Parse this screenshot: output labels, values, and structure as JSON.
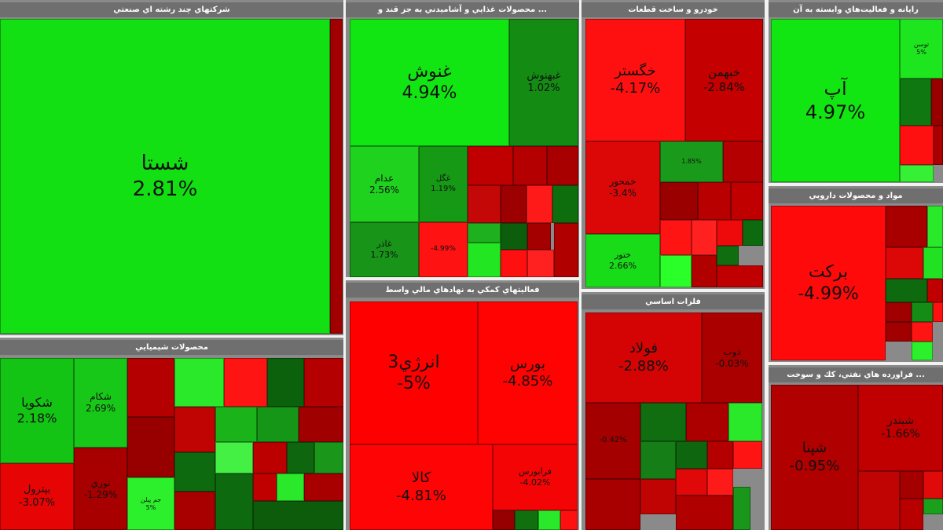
{
  "sectors": [
    {
      "title": "شرکتهاي چند رشته اي صنعتي",
      "tiles": [
        {
          "sym": "شستا",
          "pct": "2.81%",
          "color": "#12e012"
        },
        {
          "sym": "",
          "pct": "",
          "color": "#a00000"
        }
      ]
    },
    {
      "title": "... محصولات غذايي و آشاميدني به جز قند و",
      "tiles": [
        {
          "sym": "غنوش",
          "pct": "4.94%",
          "color": "#12e612"
        },
        {
          "sym": "غبهنوش",
          "pct": "1.02%",
          "color": "#148c14"
        },
        {
          "sym": "عدام",
          "pct": "2.56%",
          "color": "#1ed21e"
        },
        {
          "sym": "غگل",
          "pct": "1.19%",
          "color": "#169a16"
        },
        {
          "sym": "غاذر",
          "pct": "1.73%",
          "color": "#189418"
        },
        {
          "sym": "",
          "pct": "-4.99%",
          "color": "#ff1212"
        },
        {
          "sym": "",
          "pct": "",
          "color": "#c00000"
        },
        {
          "sym": "",
          "pct": "",
          "color": "#b40000"
        },
        {
          "sym": "",
          "pct": "",
          "color": "#a80000"
        },
        {
          "sym": "",
          "pct": "",
          "color": "#c40808"
        },
        {
          "sym": "",
          "pct": "",
          "color": "#9c0000"
        },
        {
          "sym": "",
          "pct": "",
          "color": "#ff1a1a"
        },
        {
          "sym": "",
          "pct": "",
          "color": "#0e6e0e"
        },
        {
          "sym": "",
          "pct": "",
          "color": "#1eb01e"
        },
        {
          "sym": "",
          "pct": "",
          "color": "#0c5e0c"
        },
        {
          "sym": "",
          "pct": "",
          "color": "#a40000"
        },
        {
          "sym": "",
          "pct": "",
          "color": "#22e622"
        },
        {
          "sym": "",
          "pct": "",
          "color": "#ff1010"
        },
        {
          "sym": "",
          "pct": "",
          "color": "#ff2020"
        },
        {
          "sym": "",
          "pct": "",
          "color": "#b00000"
        }
      ]
    },
    {
      "title": "خودرو و ساخت قطعات",
      "tiles": [
        {
          "sym": "خگستر",
          "pct": "-4.17%",
          "color": "#ff1010"
        },
        {
          "sym": "خبهمن",
          "pct": "-2.84%",
          "color": "#c40000"
        },
        {
          "sym": "خمحور",
          "pct": "-3.4%",
          "color": "#dc0808"
        },
        {
          "sym": "ختور",
          "pct": "2.66%",
          "color": "#18dc18"
        },
        {
          "sym": "",
          "pct": "1.85%",
          "color": "#1a9a1a"
        },
        {
          "sym": "",
          "pct": "",
          "color": "#b40000"
        },
        {
          "sym": "",
          "pct": "",
          "color": "#9a0000"
        },
        {
          "sym": "",
          "pct": "",
          "color": "#b80000"
        },
        {
          "sym": "",
          "pct": "",
          "color": "#c00000"
        },
        {
          "sym": "",
          "pct": "",
          "color": "#ff1414"
        },
        {
          "sym": "",
          "pct": "",
          "color": "#ff2020"
        },
        {
          "sym": "",
          "pct": "",
          "color": "#ee0a0a"
        },
        {
          "sym": "",
          "pct": "",
          "color": "#0e6a0e"
        },
        {
          "sym": "",
          "pct": "",
          "color": "#2aff2a"
        },
        {
          "sym": "",
          "pct": "",
          "color": "#b00000"
        },
        {
          "sym": "",
          "pct": "",
          "color": "#106e10"
        },
        {
          "sym": "",
          "pct": "",
          "color": "#c00000"
        }
      ]
    },
    {
      "title": "رايانه و فعاليت‌هاي وابسته به آن",
      "tiles": [
        {
          "sym": "آپ",
          "pct": "4.97%",
          "color": "#12e612"
        },
        {
          "sym": "توسن",
          "pct": "5%",
          "color": "#1ee61e"
        },
        {
          "sym": "",
          "pct": "",
          "color": "#107810"
        },
        {
          "sym": "",
          "pct": "",
          "color": "#980000"
        },
        {
          "sym": "",
          "pct": "",
          "color": "#ff1010"
        },
        {
          "sym": "",
          "pct": "",
          "color": "#aa0000"
        },
        {
          "sym": "",
          "pct": "",
          "color": "#36f036"
        }
      ]
    },
    {
      "title": "مواد و محصولات دارويي",
      "tiles": [
        {
          "sym": "برکت",
          "pct": "-4.99%",
          "color": "#ff0a0a"
        },
        {
          "sym": "",
          "pct": "",
          "color": "#a80000"
        },
        {
          "sym": "",
          "pct": "",
          "color": "#2ae82a"
        },
        {
          "sym": "",
          "pct": "",
          "color": "#dc0808"
        },
        {
          "sym": "",
          "pct": "",
          "color": "#22e022"
        },
        {
          "sym": "",
          "pct": "",
          "color": "#0e6a0e"
        },
        {
          "sym": "",
          "pct": "",
          "color": "#c00000"
        },
        {
          "sym": "",
          "pct": "",
          "color": "#a00000"
        },
        {
          "sym": "",
          "pct": "",
          "color": "#158c15"
        },
        {
          "sym": "",
          "pct": "",
          "color": "#ff1010"
        },
        {
          "sym": "",
          "pct": "",
          "color": "#a00000"
        },
        {
          "sym": "",
          "pct": "",
          "color": "#ff1414"
        },
        {
          "sym": "",
          "pct": "",
          "color": "#2cf02c"
        }
      ]
    },
    {
      "title": "... فراورده هاي نفتي، كك و سوخت",
      "tiles": [
        {
          "sym": "شپنا",
          "pct": "-0.95%",
          "color": "#b00000"
        },
        {
          "sym": "شبندر",
          "pct": "-1.66%",
          "color": "#c00000"
        },
        {
          "sym": "",
          "pct": "",
          "color": "#c00404"
        },
        {
          "sym": "",
          "pct": "",
          "color": "#a40000"
        },
        {
          "sym": "",
          "pct": "",
          "color": "#e00a0a"
        },
        {
          "sym": "",
          "pct": "",
          "color": "#1aa01a"
        },
        {
          "sym": "",
          "pct": "",
          "color": "#b80000"
        }
      ]
    },
    {
      "title": "محصولات شيميايي",
      "tiles": [
        {
          "sym": "شکويا",
          "pct": "2.18%",
          "color": "#14c414"
        },
        {
          "sym": "شکام",
          "pct": "2.69%",
          "color": "#18c818"
        },
        {
          "sym": "بپترول",
          "pct": "-3.07%",
          "color": "#e60404"
        },
        {
          "sym": "نوري",
          "pct": "-1.29%",
          "color": "#a80000"
        },
        {
          "sym": "",
          "pct": "",
          "color": "#b40000"
        },
        {
          "sym": "",
          "pct": "",
          "color": "#980000"
        },
        {
          "sym": "جم پيلن",
          "pct": "5%",
          "color": "#2cf02c"
        },
        {
          "sym": "",
          "pct": "",
          "color": "#2ae82a"
        },
        {
          "sym": "",
          "pct": "",
          "color": "#ff1414"
        },
        {
          "sym": "",
          "pct": "",
          "color": "#0c620c"
        },
        {
          "sym": "",
          "pct": "",
          "color": "#b40000"
        },
        {
          "sym": "",
          "pct": "",
          "color": "#c00404"
        },
        {
          "sym": "",
          "pct": "",
          "color": "#0e6a0e"
        },
        {
          "sym": "",
          "pct": "",
          "color": "#a80000"
        },
        {
          "sym": "",
          "pct": "",
          "color": "#1ab41a"
        },
        {
          "sym": "",
          "pct": "",
          "color": "#169616"
        },
        {
          "sym": "",
          "pct": "",
          "color": "#a00000"
        },
        {
          "sym": "",
          "pct": "",
          "color": "#44f044"
        },
        {
          "sym": "",
          "pct": "",
          "color": "#bc0000"
        },
        {
          "sym": "",
          "pct": "",
          "color": "#0e660e"
        },
        {
          "sym": "",
          "pct": "",
          "color": "#1a961a"
        },
        {
          "sym": "",
          "pct": "",
          "color": "#0e6a0e"
        },
        {
          "sym": "",
          "pct": "",
          "color": "#c00000"
        },
        {
          "sym": "",
          "pct": "",
          "color": "#2ae82a"
        },
        {
          "sym": "",
          "pct": "",
          "color": "#a80000"
        },
        {
          "sym": "",
          "pct": "",
          "color": "#0c5c0c"
        }
      ]
    },
    {
      "title": "فعاليتهاي کمکي به نهادهاي مالي واسط",
      "tiles": [
        {
          "sym": "انرژي3",
          "pct": "-5%",
          "color": "#ff0000"
        },
        {
          "sym": "بورس",
          "pct": "-4.85%",
          "color": "#ff0202"
        },
        {
          "sym": "کالا",
          "pct": "-4.81%",
          "color": "#ff0404"
        },
        {
          "sym": "فرابورس",
          "pct": "-4.02%",
          "color": "#f40404"
        },
        {
          "sym": "",
          "pct": "",
          "color": "#960000"
        },
        {
          "sym": "",
          "pct": "",
          "color": "#107010"
        },
        {
          "sym": "",
          "pct": "",
          "color": "#2ae82a"
        },
        {
          "sym": "",
          "pct": "",
          "color": "#ff1010"
        }
      ]
    },
    {
      "title": "فلزات اساسي",
      "tiles": [
        {
          "sym": "فولاد",
          "pct": "-2.88%",
          "color": "#d40404"
        },
        {
          "sym": "ذوب",
          "pct": "-0.03%",
          "color": "#aa0000"
        },
        {
          "sym": "",
          "pct": "-0.42%",
          "color": "#a40000"
        },
        {
          "sym": "",
          "pct": "",
          "color": "#a80000"
        },
        {
          "sym": "",
          "pct": "",
          "color": "#106e10"
        },
        {
          "sym": "",
          "pct": "",
          "color": "#ac0000"
        },
        {
          "sym": "",
          "pct": "",
          "color": "#2ae82a"
        },
        {
          "sym": "",
          "pct": "",
          "color": "#167e16"
        },
        {
          "sym": "",
          "pct": "",
          "color": "#0e660e"
        },
        {
          "sym": "",
          "pct": "",
          "color": "#b40000"
        },
        {
          "sym": "",
          "pct": "",
          "color": "#ff1414"
        },
        {
          "sym": "",
          "pct": "",
          "color": "#c00404"
        },
        {
          "sym": "",
          "pct": "",
          "color": "#e00808"
        },
        {
          "sym": "",
          "pct": "",
          "color": "#ff1a1a"
        },
        {
          "sym": "",
          "pct": "",
          "color": "#1a961a"
        },
        {
          "sym": "",
          "pct": "",
          "color": "#b00000"
        }
      ]
    }
  ]
}
